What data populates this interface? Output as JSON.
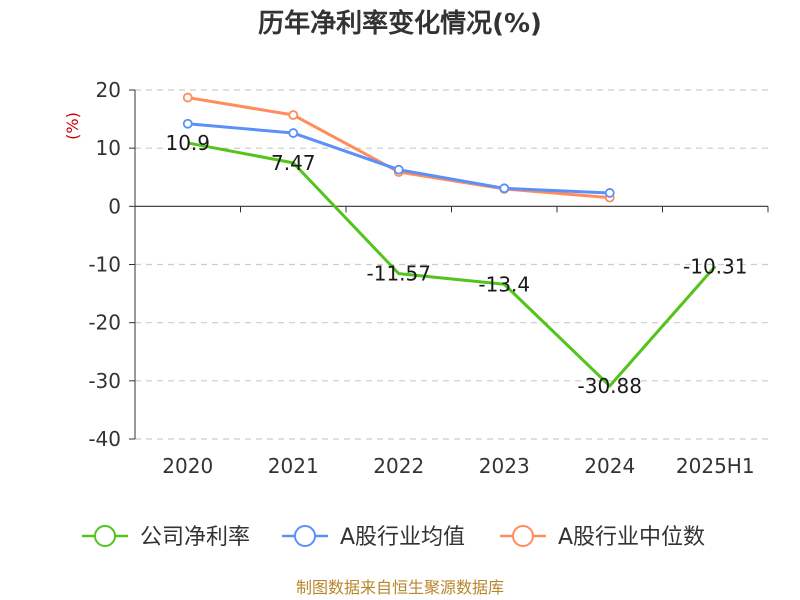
{
  "chart_data": {
    "type": "line",
    "title": "历年净利率变化情况(%)",
    "ylabel": "(%)",
    "categories": [
      "2020",
      "2021",
      "2022",
      "2023",
      "2024",
      "2025H1"
    ],
    "ylim": [
      -40,
      20
    ],
    "yticks": [
      20,
      10,
      0,
      -10,
      -20,
      -30,
      -40
    ],
    "grid": true,
    "legend_position": "bottom",
    "series": [
      {
        "name": "公司净利率",
        "color": "#52c41a",
        "values": [
          10.9,
          7.47,
          -11.57,
          -13.4,
          -30.88,
          -10.31
        ],
        "labels": [
          "10.9",
          "7.47",
          "-11.57",
          "-13.4",
          "-30.88",
          "-10.31"
        ]
      },
      {
        "name": "A股行业均值",
        "color": "#5b8ff9",
        "values": [
          14.2,
          12.6,
          6.3,
          3.1,
          2.3,
          null
        ]
      },
      {
        "name": "A股行业中位数",
        "color": "#ff8c5a",
        "values": [
          18.7,
          15.7,
          5.9,
          3.0,
          1.5,
          null
        ]
      }
    ]
  },
  "source": "制图数据来自恒生聚源数据库"
}
